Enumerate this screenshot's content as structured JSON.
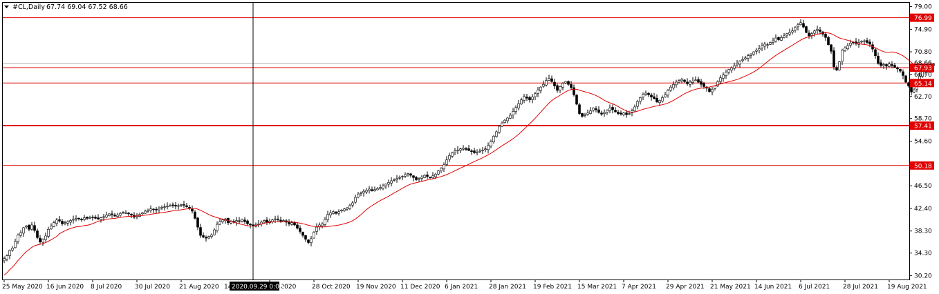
{
  "header": {
    "symbol": "#CL,Daily",
    "ohlc": "67.74 69.04 67.52 68.66"
  },
  "colors": {
    "background": "#ffffff",
    "candle_up": "#ffffff",
    "candle_down": "#000000",
    "candle_outline": "#000000",
    "moving_average": "#e00000",
    "level_line": "#e00000",
    "level_label_bg": "#e00000",
    "crosshair": "#000000",
    "current_price_line": "#b0b0b0"
  },
  "chart_data": {
    "type": "candlestick",
    "ylim": [
      29.5,
      79.7
    ],
    "y_ticks": [
      {
        "value": 79.0,
        "label": "79.00"
      },
      {
        "value": 74.9,
        "label": "74.90"
      },
      {
        "value": 70.8,
        "label": "70.80"
      },
      {
        "value": 66.7,
        "label": "66.70"
      },
      {
        "value": 62.7,
        "label": "62.70"
      },
      {
        "value": 58.7,
        "label": "58.70"
      },
      {
        "value": 54.6,
        "label": "54.60"
      },
      {
        "value": 50.5,
        "label": "50.50"
      },
      {
        "value": 46.5,
        "label": "46.50"
      },
      {
        "value": 42.4,
        "label": "42.40"
      },
      {
        "value": 38.3,
        "label": "38.30"
      },
      {
        "value": 34.3,
        "label": "34.30"
      },
      {
        "value": 30.2,
        "label": "30.20"
      }
    ],
    "x_ticks": [
      {
        "index": 0,
        "label": "25 May 2020"
      },
      {
        "index": 16,
        "label": "16 Jun 2020"
      },
      {
        "index": 32,
        "label": "8 Jul 2020"
      },
      {
        "index": 48,
        "label": "30 Jul 2020"
      },
      {
        "index": 64,
        "label": "21 Aug 2020"
      },
      {
        "index": 96,
        "label": "Oct 2020"
      },
      {
        "index": 112,
        "label": "28 Oct 2020"
      },
      {
        "index": 128,
        "label": "19 Nov 2020"
      },
      {
        "index": 144,
        "label": "11 Dec 2020"
      },
      {
        "index": 160,
        "label": "6 Jan 2021"
      },
      {
        "index": 176,
        "label": "28 Jan 2021"
      },
      {
        "index": 192,
        "label": "19 Feb 2021"
      },
      {
        "index": 208,
        "label": "15 Mar 2021"
      },
      {
        "index": 224,
        "label": "7 Apr 2021"
      },
      {
        "index": 240,
        "label": "29 Apr 2021"
      },
      {
        "index": 256,
        "label": "21 May 2021"
      },
      {
        "index": 272,
        "label": "14 Jun 2021"
      },
      {
        "index": 288,
        "label": "6 Jul 2021"
      },
      {
        "index": 304,
        "label": "28 Jul 2021"
      },
      {
        "index": 320,
        "label": "19 Aug 2021"
      }
    ],
    "levels": [
      {
        "value": 76.99,
        "label": "76.99",
        "width": 1
      },
      {
        "value": 67.93,
        "label": "67.93",
        "width": 1
      },
      {
        "value": 65.14,
        "label": "65.14",
        "width": 1
      },
      {
        "value": 57.41,
        "label": "57.41",
        "width": 2
      },
      {
        "value": 50.18,
        "label": "50.18",
        "width": 1
      }
    ],
    "current_price": {
      "value": 68.66,
      "label": "68.66"
    },
    "crosshair": {
      "index": 90,
      "date_label": "2020.09.29 0:00",
      "partial_date_label": "14"
    },
    "close": [
      33.3,
      33.8,
      34.8,
      35.2,
      36.4,
      37.6,
      38.0,
      38.9,
      39.2,
      38.6,
      39.4,
      38.4,
      37.1,
      36.3,
      36.8,
      37.4,
      38.6,
      39.2,
      39.8,
      40.3,
      40.1,
      39.6,
      39.8,
      40.0,
      40.2,
      40.4,
      40.6,
      40.5,
      40.3,
      40.7,
      40.6,
      40.7,
      40.8,
      40.6,
      40.5,
      40.7,
      40.9,
      41.2,
      41.4,
      41.3,
      41.0,
      41.2,
      41.5,
      41.7,
      41.6,
      41.4,
      41.2,
      40.8,
      41.0,
      41.3,
      41.6,
      41.9,
      42.0,
      42.3,
      42.2,
      42.1,
      42.4,
      42.6,
      42.7,
      42.8,
      42.9,
      43.0,
      42.8,
      42.9,
      43.1,
      43.0,
      42.7,
      42.4,
      41.9,
      40.6,
      39.0,
      37.5,
      37.2,
      37.0,
      37.3,
      37.6,
      38.5,
      39.5,
      40.0,
      40.3,
      40.5,
      39.8,
      40.0,
      39.9,
      40.2,
      40.1,
      40.4,
      40.0,
      39.6,
      39.4,
      39.2,
      39.4,
      39.6,
      39.9,
      40.2,
      39.8,
      40.1,
      40.3,
      40.5,
      40.4,
      40.1,
      40.2,
      39.9,
      39.6,
      39.8,
      39.4,
      38.8,
      38.2,
      37.5,
      36.8,
      36.2,
      36.9,
      38.1,
      39.0,
      39.4,
      39.6,
      40.4,
      41.3,
      41.6,
      41.8,
      41.5,
      41.8,
      42.1,
      42.3,
      42.5,
      42.9,
      43.4,
      44.4,
      45.0,
      45.2,
      45.5,
      45.7,
      45.9,
      45.6,
      45.8,
      46.0,
      46.2,
      46.5,
      46.8,
      47.1,
      47.4,
      47.6,
      47.8,
      48.0,
      48.2,
      48.5,
      48.7,
      48.4,
      48.0,
      47.6,
      47.8,
      48.1,
      48.4,
      48.2,
      48.0,
      48.3,
      48.6,
      49.2,
      49.7,
      50.3,
      51.2,
      52.0,
      52.5,
      52.8,
      53.0,
      53.2,
      53.3,
      53.1,
      52.9,
      52.7,
      52.5,
      52.6,
      52.8,
      53.0,
      53.2,
      53.8,
      54.5,
      55.5,
      56.3,
      57.3,
      57.9,
      58.4,
      58.8,
      59.3,
      60.0,
      60.7,
      61.4,
      62.1,
      62.7,
      62.4,
      62.1,
      62.6,
      63.2,
      63.9,
      64.4,
      64.9,
      65.6,
      66.0,
      65.4,
      64.6,
      63.8,
      64.5,
      65.1,
      65.4,
      64.9,
      64.3,
      63.0,
      61.3,
      59.6,
      59.1,
      59.4,
      59.7,
      60.1,
      60.6,
      60.3,
      59.8,
      59.5,
      59.8,
      60.2,
      60.6,
      60.3,
      59.9,
      59.6,
      59.5,
      59.7,
      59.4,
      59.6,
      60.1,
      60.8,
      61.8,
      62.5,
      63.1,
      63.3,
      63.0,
      62.6,
      62.3,
      61.7,
      62.0,
      62.5,
      63.0,
      63.8,
      64.4,
      64.9,
      65.3,
      65.6,
      65.8,
      65.4,
      65.0,
      65.3,
      65.5,
      65.7,
      65.3,
      64.9,
      64.5,
      64.2,
      63.6,
      64.0,
      64.6,
      65.4,
      66.1,
      66.6,
      67.1,
      67.6,
      67.9,
      68.3,
      68.7,
      69.1,
      69.4,
      69.7,
      70.1,
      70.4,
      70.8,
      71.1,
      71.4,
      71.9,
      72.2,
      72.1,
      72.5,
      72.8,
      73.3,
      73.0,
      73.4,
      73.7,
      74.1,
      74.3,
      74.6,
      75.2,
      75.7,
      76.1,
      75.3,
      74.3,
      73.7,
      74.1,
      74.6,
      74.9,
      74.5,
      74.0,
      73.4,
      72.1,
      70.9,
      68.1,
      67.5,
      69.0,
      71.1,
      71.5,
      71.9,
      72.4,
      72.5,
      72.3,
      72.5,
      72.7,
      72.8,
      72.5,
      72.2,
      71.3,
      70.1,
      68.7,
      68.3,
      68.5,
      68.2,
      68.6,
      68.3,
      68.0,
      67.7,
      67.3,
      66.5,
      65.3,
      64.6,
      63.5,
      63.9,
      65.3,
      66.4,
      67.2,
      67.6,
      67.9,
      68.3,
      68.66
    ]
  }
}
